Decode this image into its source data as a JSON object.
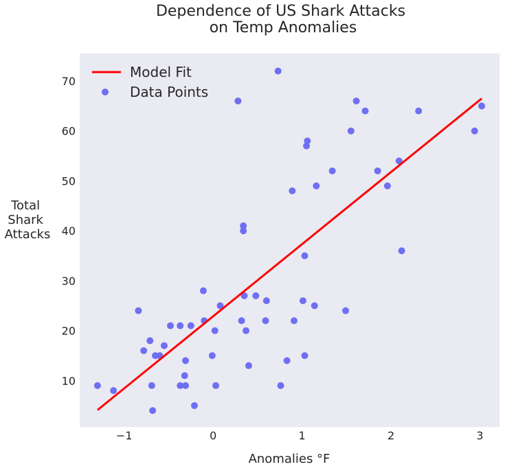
{
  "colors": {
    "plot_background": "#EAEAF2",
    "fit_line": "#FF0000",
    "points": "#6F6FF2",
    "text": "#262626"
  },
  "chart_data": {
    "type": "scatter",
    "title": "Dependence of US Shark Attacks\non Temp Anomalies",
    "xlabel": "Anomalies °F",
    "ylabel": "Total\nShark\nAttacks",
    "xlim": [
      -1.5,
      3.22
    ],
    "ylim": [
      0.7,
      75.5
    ],
    "x_ticks": [
      -1,
      0,
      1,
      2,
      3
    ],
    "x_tick_labels": [
      "−1",
      "0",
      "1",
      "2",
      "3"
    ],
    "y_ticks": [
      10,
      20,
      30,
      40,
      50,
      60,
      70
    ],
    "y_tick_labels": [
      "10",
      "20",
      "30",
      "40",
      "50",
      "60",
      "70"
    ],
    "grid": false,
    "legend_position": "top-left",
    "legend": [
      "Model Fit",
      "Data Points"
    ],
    "fit_line": {
      "name": "Model Fit",
      "x": [
        -1.3,
        3.02
      ],
      "y": [
        4.1,
        66.5
      ]
    },
    "series": [
      {
        "name": "Data Points",
        "x": [
          -1.3,
          -1.12,
          -0.84,
          -0.78,
          -0.71,
          -0.69,
          -0.68,
          -0.65,
          -0.6,
          -0.55,
          -0.48,
          -0.37,
          -0.37,
          -0.32,
          -0.31,
          -0.31,
          -0.25,
          -0.21,
          -0.11,
          -0.1,
          -0.01,
          0.02,
          0.03,
          0.08,
          0.28,
          0.32,
          0.34,
          0.34,
          0.35,
          0.37,
          0.4,
          0.48,
          0.59,
          0.6,
          0.73,
          0.76,
          0.83,
          0.89,
          0.91,
          1.01,
          1.03,
          1.03,
          1.05,
          1.06,
          1.14,
          1.16,
          1.34,
          1.49,
          1.55,
          1.61,
          1.71,
          1.85,
          1.96,
          2.09,
          2.12,
          2.31,
          2.94,
          3.02
        ],
        "y": [
          9,
          8,
          24,
          16,
          18,
          9,
          4,
          15,
          15,
          17,
          21,
          9,
          21,
          11,
          9,
          14,
          21,
          5,
          28,
          22,
          15,
          20,
          9,
          25,
          66,
          22,
          40,
          41,
          27,
          20,
          13,
          27,
          22,
          26,
          72,
          9,
          14,
          48,
          22,
          26,
          15,
          35,
          57,
          58,
          25,
          49,
          52,
          24,
          60,
          66,
          64,
          52,
          49,
          54,
          36,
          64,
          60,
          65
        ]
      }
    ]
  }
}
